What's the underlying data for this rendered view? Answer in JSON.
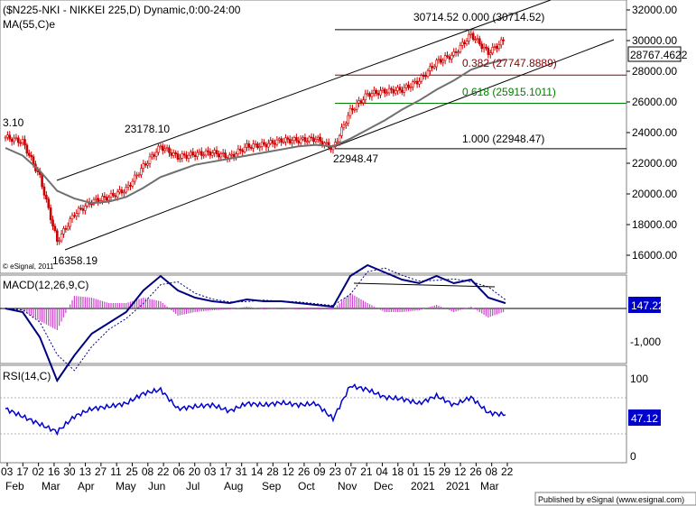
{
  "header": {
    "title": "($N225-NKI - NIKKEI 225,D) Dynamic,0:00-24:00",
    "ma_label": "MA(55,C)e",
    "copyright": "© eSignal, 2011"
  },
  "price_axis": {
    "ticks": [
      "32000.00",
      "30000.00",
      "28000.00",
      "26000.00",
      "24000.00",
      "22000.00",
      "20000.00",
      "18000.00",
      "16000.00"
    ],
    "last_price": "28767.4622"
  },
  "annotations": {
    "high_label": "30714.52",
    "early_label": "23178.10",
    "low_label": "16358.19",
    "nov_low_label": "22948.47",
    "left_cut_label": "3.10"
  },
  "fib_levels": [
    {
      "label": "0.000 (30714.52)",
      "value": 30714.52,
      "color": "#000000"
    },
    {
      "label": "0.382 (27747.8889)",
      "value": 27747.8889,
      "color": "#8b0000"
    },
    {
      "label": "0.618 (25915.1011)",
      "value": 25915.1011,
      "color": "#008000"
    },
    {
      "label": "1.000 (22948.47)",
      "value": 22948.47,
      "color": "#000000"
    }
  ],
  "macd": {
    "label": "MACD(12,26,9,C)",
    "value": "147.22",
    "ticks": [
      "-1,000"
    ]
  },
  "rsi": {
    "label": "RSI(14,C)",
    "value": "47.12",
    "ticks": [
      "100",
      "0"
    ]
  },
  "x_axis": {
    "day_ticks": [
      "03",
      "17",
      "02",
      "16",
      "30",
      "13",
      "27",
      "11",
      "25",
      "08",
      "22",
      "06",
      "20",
      "03",
      "17",
      "31",
      "14",
      "28",
      "12",
      "26",
      "09",
      "23",
      "07",
      "21",
      "04",
      "18",
      "01",
      "15",
      "29",
      "12",
      "26",
      "08",
      "22"
    ],
    "month_labels": [
      "Feb",
      "Mar",
      "Apr",
      "May",
      "Jun",
      "Jul",
      "Aug",
      "Sep",
      "Oct",
      "Nov",
      "Dec",
      "2021",
      "2021",
      "Mar"
    ]
  },
  "footer": {
    "text": "Published by eSignal (www.esignal.com)"
  },
  "colors": {
    "candle": "#cc0000",
    "ma": "#707070",
    "macd_line": "#000080",
    "hist": "#cc44cc",
    "rsi_line": "#0000cc",
    "value_box": "#0000cc"
  },
  "chart_data": {
    "type": "line",
    "title": "($N225-NKI - NIKKEI 225,D) Dynamic,0:00-24:00",
    "ylim": [
      15000,
      32500
    ],
    "x": [
      "2020-02-03",
      "2020-02-17",
      "2020-03-02",
      "2020-03-16",
      "2020-03-30",
      "2020-04-13",
      "2020-04-27",
      "2020-05-11",
      "2020-05-25",
      "2020-06-08",
      "2020-06-22",
      "2020-07-06",
      "2020-07-20",
      "2020-08-03",
      "2020-08-17",
      "2020-08-31",
      "2020-09-14",
      "2020-09-28",
      "2020-10-12",
      "2020-10-26",
      "2020-11-09",
      "2020-11-23",
      "2020-12-07",
      "2020-12-21",
      "2021-01-04",
      "2021-01-18",
      "2021-02-01",
      "2021-02-15",
      "2021-03-01",
      "2021-03-15"
    ],
    "series": [
      {
        "name": "NIKKEI 225",
        "values": [
          23700,
          23400,
          21100,
          16900,
          18700,
          19500,
          19800,
          20300,
          21800,
          23100,
          22400,
          22600,
          22700,
          22400,
          23100,
          23200,
          23500,
          23500,
          23600,
          22950,
          25400,
          26500,
          26700,
          26800,
          27400,
          28600,
          29100,
          30400,
          29200,
          30100
        ]
      },
      {
        "name": "MA(55,C)e",
        "values": [
          23000,
          22500,
          21500,
          20200,
          19700,
          19400,
          19500,
          19800,
          20400,
          21100,
          21500,
          21900,
          22100,
          22300,
          22500,
          22700,
          22900,
          23100,
          23200,
          23100,
          23600,
          24200,
          24800,
          25500,
          26100,
          26800,
          27400,
          28100,
          28500,
          28760
        ]
      }
    ],
    "macd": {
      "name": "MACD(12,26,9,C)",
      "values": [
        0,
        -100,
        -800,
        -2000,
        -1300,
        -700,
        -400,
        -100,
        500,
        900,
        500,
        300,
        200,
        150,
        250,
        200,
        200,
        150,
        100,
        50,
        900,
        1200,
        1000,
        800,
        700,
        900,
        700,
        800,
        300,
        147.22
      ]
    },
    "rsi": {
      "name": "RSI(14,C)",
      "values": [
        55,
        45,
        35,
        25,
        45,
        55,
        58,
        62,
        75,
        80,
        55,
        58,
        60,
        52,
        62,
        60,
        63,
        60,
        62,
        42,
        85,
        80,
        70,
        68,
        62,
        72,
        60,
        70,
        50,
        47.12
      ]
    }
  }
}
